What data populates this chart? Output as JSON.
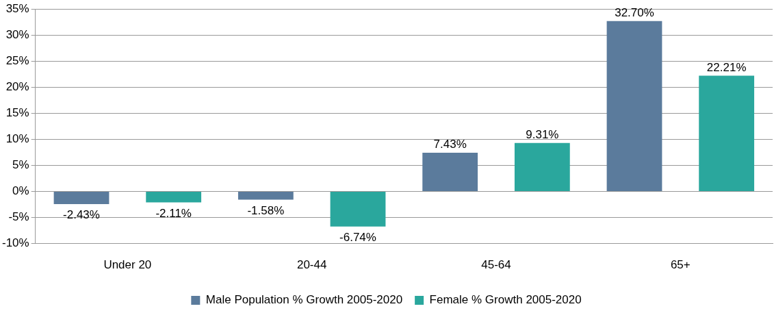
{
  "chart_data": {
    "type": "bar",
    "categories": [
      "Under 20",
      "20-44",
      "45-64",
      "65+"
    ],
    "series": [
      {
        "name": "Male Population % Growth 2005-2020",
        "color": "#5b7b9c",
        "values": [
          -2.43,
          -1.58,
          7.43,
          32.7
        ],
        "value_labels": [
          "-2.43%",
          "-1.58%",
          "7.43%",
          "32.70%"
        ]
      },
      {
        "name": "Female % Growth 2005-2020",
        "color": "#2aa79d",
        "values": [
          -2.11,
          -6.74,
          9.31,
          22.21
        ],
        "value_labels": [
          "-2.11%",
          "-6.74%",
          "9.31%",
          "22.21%"
        ]
      }
    ],
    "ylim": [
      -10,
      35
    ],
    "yticks": [
      {
        "value": -10,
        "label": "-10%"
      },
      {
        "value": -5,
        "label": "-5%"
      },
      {
        "value": 0,
        "label": "0%"
      },
      {
        "value": 5,
        "label": "5%"
      },
      {
        "value": 10,
        "label": "10%"
      },
      {
        "value": 15,
        "label": "15%"
      },
      {
        "value": 20,
        "label": "20%"
      },
      {
        "value": 25,
        "label": "25%"
      },
      {
        "value": 30,
        "label": "30%"
      },
      {
        "value": 35,
        "label": "35%"
      }
    ],
    "grid": "y",
    "legend": "bottom"
  }
}
